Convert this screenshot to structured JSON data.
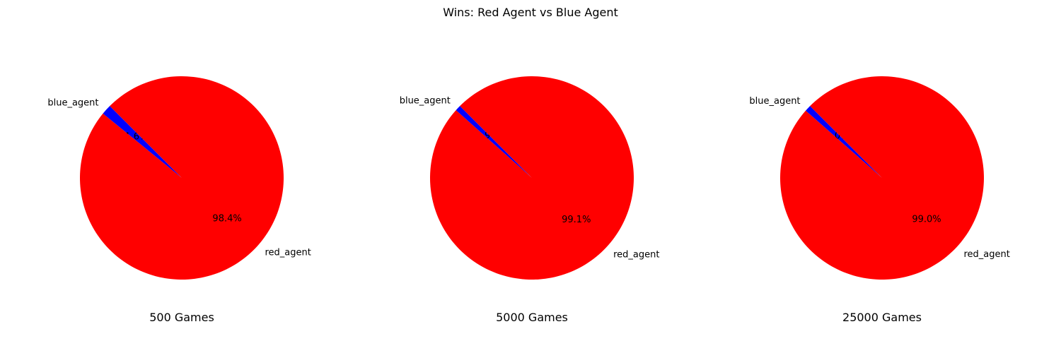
{
  "chart_data": {
    "type": "pie",
    "title": "Wins: Red Agent vs Blue Agent",
    "subplots": [
      {
        "xlabel": "500 Games",
        "slices": [
          {
            "label": "blue_agent",
            "value": 1.6,
            "pct_label": "1.6%",
            "color": "#0000ff"
          },
          {
            "label": "red_agent",
            "value": 98.4,
            "pct_label": "98.4%",
            "color": "#ff0000"
          }
        ]
      },
      {
        "xlabel": "5000 Games",
        "slices": [
          {
            "label": "blue_agent",
            "value": 0.9,
            "pct_label": "0.9%",
            "color": "#0000ff"
          },
          {
            "label": "red_agent",
            "value": 99.1,
            "pct_label": "99.1%",
            "color": "#ff0000"
          }
        ]
      },
      {
        "xlabel": "25000 Games",
        "slices": [
          {
            "label": "blue_agent",
            "value": 1.0,
            "pct_label": "1.0%",
            "color": "#0000ff"
          },
          {
            "label": "red_agent",
            "value": 99.0,
            "pct_label": "99.0%",
            "color": "#ff0000"
          }
        ]
      }
    ]
  }
}
